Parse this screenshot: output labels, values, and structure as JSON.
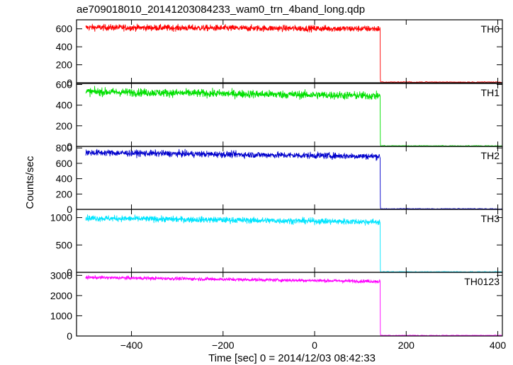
{
  "chart_data": {
    "type": "line",
    "title": "ae709018010_20141203084233_wam0_trn_4band_long.qdp",
    "xlabel": "Time [sec] 0 = 2014/12/03 08:42:33",
    "ylabel": "Counts/sec",
    "xlim": [
      -520,
      410
    ],
    "xticks": [
      -400,
      -200,
      0,
      200,
      400
    ],
    "x_start": -500,
    "x_drop": 143,
    "x_end": 410,
    "grid": false,
    "legend": "none",
    "panels": [
      {
        "name": "TH0",
        "color": "#ff0000",
        "ylim": [
          0,
          700
        ],
        "yticks": [
          0,
          200,
          400,
          600
        ],
        "level_start": 615,
        "level_end": 600,
        "noise": 25,
        "after_drop": 8
      },
      {
        "name": "TH1",
        "color": "#00e000",
        "ylim": [
          0,
          610
        ],
        "yticks": [
          0,
          200,
          400,
          600
        ],
        "level_start": 530,
        "level_end": 490,
        "noise": 28,
        "after_drop": 6
      },
      {
        "name": "TH2",
        "color": "#0000cc",
        "ylim": [
          0,
          820
        ],
        "yticks": [
          0,
          200,
          400,
          600,
          800
        ],
        "level_start": 740,
        "level_end": 690,
        "noise": 30,
        "after_drop": 8
      },
      {
        "name": "TH3",
        "color": "#00e5ff",
        "ylim": [
          0,
          1150
        ],
        "yticks": [
          0,
          500,
          1000
        ],
        "level_start": 990,
        "level_end": 920,
        "noise": 40,
        "after_drop": 10
      },
      {
        "name": "TH0123",
        "color": "#ff00ff",
        "ylim": [
          0,
          3150
        ],
        "yticks": [
          0,
          1000,
          2000,
          3000
        ],
        "level_start": 2900,
        "level_end": 2700,
        "noise": 60,
        "after_drop": 30
      }
    ]
  }
}
